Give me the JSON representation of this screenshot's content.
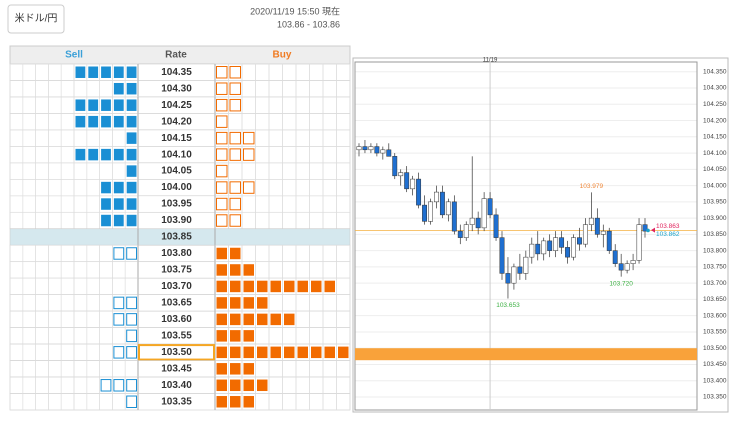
{
  "header": {
    "pair": "米ドル/円",
    "timestamp": "2020/11/19 15:50 現在",
    "rates": "103.86 - 103.86"
  },
  "order_book": {
    "headers": {
      "sell": "Sell",
      "rate": "Rate",
      "buy": "Buy"
    },
    "sell_color": "#1a8fd4",
    "buy_color": "#f26b00",
    "rows": [
      {
        "rate": "104.35",
        "sell": 5,
        "buy": 2
      },
      {
        "rate": "104.30",
        "sell": 2,
        "buy": 2
      },
      {
        "rate": "104.25",
        "sell": 5,
        "buy": 2
      },
      {
        "rate": "104.20",
        "sell": 5,
        "buy": 1
      },
      {
        "rate": "104.15",
        "sell": 1,
        "buy": 3
      },
      {
        "rate": "104.10",
        "sell": 5,
        "buy": 3
      },
      {
        "rate": "104.05",
        "sell": 1,
        "buy": 1
      },
      {
        "rate": "104.00",
        "sell": 3,
        "buy": 3
      },
      {
        "rate": "103.95",
        "sell": 3,
        "buy": 2
      },
      {
        "rate": "103.90",
        "sell": 3,
        "buy": 2
      },
      {
        "rate": "103.85",
        "current": true
      },
      {
        "rate": "103.80",
        "sell": 2,
        "buy": 2
      },
      {
        "rate": "103.75",
        "sell": 0,
        "buy": 3
      },
      {
        "rate": "103.70",
        "sell": 0,
        "buy": 9
      },
      {
        "rate": "103.65",
        "sell": 2,
        "buy": 4
      },
      {
        "rate": "103.60",
        "sell": 2,
        "buy": 6
      },
      {
        "rate": "103.55",
        "sell": 1,
        "buy": 3
      },
      {
        "rate": "103.50",
        "sell": 2,
        "buy": 10,
        "selected": true
      },
      {
        "rate": "103.45",
        "sell": 0,
        "buy": 3
      },
      {
        "rate": "103.40",
        "sell": 3,
        "buy": 4
      },
      {
        "rate": "103.35",
        "sell": 1,
        "buy": 3
      }
    ]
  },
  "chart_data": {
    "type": "candlestick",
    "categories": [
      null,
      null,
      null,
      null,
      null,
      null,
      null,
      null,
      null,
      null,
      null,
      null,
      null,
      null,
      null,
      null,
      null,
      null,
      null,
      null,
      null,
      null,
      "11/19",
      null,
      null,
      null,
      null,
      null,
      null,
      null,
      null,
      null,
      null,
      null,
      null,
      null,
      null,
      null,
      null,
      null,
      null,
      null,
      null,
      null,
      null,
      null,
      null,
      null,
      null
    ],
    "open": [
      104.11,
      104.12,
      104.11,
      104.12,
      104.1,
      104.11,
      104.09,
      104.03,
      104.04,
      103.99,
      104.02,
      103.94,
      103.89,
      103.95,
      103.98,
      103.91,
      103.95,
      103.86,
      103.84,
      103.88,
      103.9,
      103.87,
      103.96,
      103.91,
      103.84,
      103.73,
      103.7,
      103.75,
      103.73,
      103.78,
      103.82,
      103.79,
      103.83,
      103.8,
      103.84,
      103.81,
      103.78,
      103.84,
      103.82,
      103.88,
      103.9,
      103.85,
      103.86,
      103.8,
      103.76,
      103.74,
      103.76,
      103.77,
      103.88
    ],
    "high": [
      104.13,
      104.14,
      104.13,
      104.13,
      104.12,
      104.13,
      104.1,
      104.05,
      104.06,
      104.03,
      104.04,
      103.97,
      103.96,
      104.0,
      104.0,
      103.96,
      103.97,
      103.88,
      103.89,
      104.09,
      103.92,
      103.98,
      103.98,
      103.93,
      103.86,
      103.78,
      103.76,
      103.79,
      103.8,
      103.84,
      103.86,
      103.84,
      103.85,
      103.86,
      103.86,
      103.83,
      103.85,
      103.87,
      103.9,
      103.979,
      103.93,
      103.88,
      103.87,
      103.82,
      103.79,
      103.77,
      103.79,
      103.9,
      103.9
    ],
    "low": [
      104.09,
      104.1,
      104.1,
      104.09,
      104.08,
      104.09,
      104.02,
      104.0,
      103.98,
      103.97,
      103.93,
      103.88,
      103.88,
      103.93,
      103.9,
      103.89,
      103.85,
      103.82,
      103.83,
      103.86,
      103.85,
      103.86,
      103.9,
      103.83,
      103.71,
      103.653,
      103.68,
      103.71,
      103.71,
      103.76,
      103.77,
      103.77,
      103.78,
      103.78,
      103.79,
      103.76,
      103.77,
      103.8,
      103.81,
      103.86,
      103.84,
      103.81,
      103.79,
      103.75,
      103.72,
      103.73,
      103.74,
      103.76,
      103.84
    ],
    "close": [
      104.12,
      104.11,
      104.12,
      104.1,
      104.11,
      104.09,
      104.03,
      104.04,
      103.99,
      104.02,
      103.94,
      103.89,
      103.95,
      103.98,
      103.91,
      103.95,
      103.86,
      103.84,
      103.88,
      103.9,
      103.87,
      103.96,
      103.91,
      103.84,
      103.73,
      103.7,
      103.75,
      103.73,
      103.78,
      103.82,
      103.79,
      103.83,
      103.8,
      103.84,
      103.81,
      103.78,
      103.84,
      103.82,
      103.88,
      103.9,
      103.85,
      103.86,
      103.8,
      103.76,
      103.74,
      103.76,
      103.77,
      103.88,
      103.86
    ],
    "up_color": "#ffffff",
    "down_color": "#1f6fd0",
    "ylim": [
      103.31,
      104.38
    ],
    "yticks": [
      {
        "value": 104.35,
        "label": "104.350"
      },
      {
        "value": 104.3,
        "label": "104.300"
      },
      {
        "value": 104.25,
        "label": "104.250"
      },
      {
        "value": 104.2,
        "label": "104.200"
      },
      {
        "value": 104.15,
        "label": "104.150"
      },
      {
        "value": 104.1,
        "label": "104.100"
      },
      {
        "value": 104.05,
        "label": "104.050"
      },
      {
        "value": 104,
        "label": "104.000"
      },
      {
        "value": 103.95,
        "label": "103.950"
      },
      {
        "value": 103.9,
        "label": "103.900"
      },
      {
        "value": 103.85,
        "label": "103.850"
      },
      {
        "value": 103.8,
        "label": "103.800"
      },
      {
        "value": 103.75,
        "label": "103.750"
      },
      {
        "value": 103.7,
        "label": "103.700"
      },
      {
        "value": 103.65,
        "label": "103.650"
      },
      {
        "value": 103.6,
        "label": "103.600"
      },
      {
        "value": 103.55,
        "label": "103.550"
      },
      {
        "value": 103.5,
        "label": "103.500"
      },
      {
        "value": 103.45,
        "label": "103.450"
      },
      {
        "value": 103.4,
        "label": "103.400"
      },
      {
        "value": 103.35,
        "label": "103.350"
      }
    ],
    "grid": true,
    "annotations": [
      {
        "label": "103.979",
        "value": 103.979,
        "color": "#f0883a"
      },
      {
        "label": "103.653",
        "value": 103.653,
        "color": "#3cb043"
      },
      {
        "label": "103.720",
        "value": 103.72,
        "color": "#3cb043"
      }
    ],
    "ask": {
      "label": "103.863",
      "value": 103.863,
      "color": "#e0245e"
    },
    "bid": {
      "label": "103.862",
      "value": 103.862,
      "color": "#1aa3c9"
    },
    "price_line_color": "#f5b041",
    "order_band_color": "#f9a23a"
  }
}
